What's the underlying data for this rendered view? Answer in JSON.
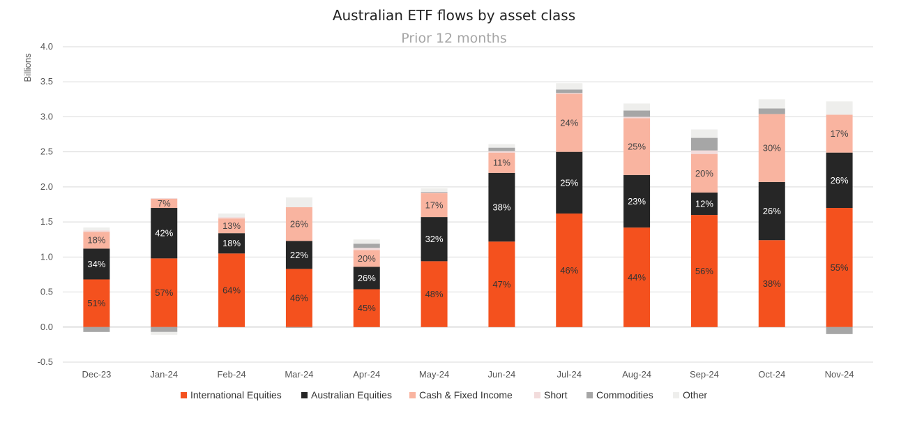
{
  "chart_data": {
    "type": "bar",
    "stacked": true,
    "title": "Australian ETF flows by asset class",
    "subtitle": "Prior 12 months",
    "ylabel": "Billions",
    "xlabel": "",
    "ylim": [
      -0.5,
      4.0
    ],
    "yticks": [
      "-0.5",
      "0.0",
      "0.5",
      "1.0",
      "1.5",
      "2.0",
      "2.5",
      "3.0",
      "3.5",
      "4.0"
    ],
    "grid": true,
    "legend_position": "bottom",
    "categories": [
      "Dec-23",
      "Jan-24",
      "Feb-24",
      "Mar-24",
      "Apr-24",
      "May-24",
      "Jun-24",
      "Jul-24",
      "Aug-24",
      "Sep-24",
      "Oct-24",
      "Nov-24"
    ],
    "series": [
      {
        "name": "International Equities",
        "color": "#f4511e",
        "label_color": "#333333",
        "values": [
          0.68,
          0.98,
          1.05,
          0.83,
          0.54,
          0.94,
          1.22,
          1.62,
          1.42,
          1.6,
          1.24,
          1.7
        ],
        "labels": [
          "51%",
          "57%",
          "64%",
          "46%",
          "45%",
          "48%",
          "47%",
          "46%",
          "44%",
          "56%",
          "38%",
          "55%"
        ]
      },
      {
        "name": "Australian Equities",
        "color": "#262626",
        "label_color": "#ffffff",
        "values": [
          0.44,
          0.72,
          0.29,
          0.4,
          0.32,
          0.63,
          0.98,
          0.88,
          0.75,
          0.32,
          0.83,
          0.79
        ],
        "labels": [
          "34%",
          "42%",
          "18%",
          "22%",
          "26%",
          "32%",
          "38%",
          "25%",
          "23%",
          "12%",
          "26%",
          "26%"
        ]
      },
      {
        "name": "Cash & Fixed Income",
        "color": "#f9b4a0",
        "label_color": "#444444",
        "values": [
          0.24,
          0.13,
          0.21,
          0.48,
          0.24,
          0.34,
          0.29,
          0.83,
          0.81,
          0.55,
          0.97,
          0.54
        ],
        "labels": [
          "18%",
          "7%",
          "13%",
          "26%",
          "20%",
          "17%",
          "11%",
          "24%",
          "25%",
          "20%",
          "30%",
          "17%"
        ]
      },
      {
        "name": "Short",
        "color": "#f2dcdc",
        "values": [
          0.02,
          0.01,
          0.02,
          0.0,
          0.03,
          0.01,
          0.02,
          0.01,
          0.02,
          0.05,
          0.0,
          0.0
        ]
      },
      {
        "name": "Commodities",
        "color": "#a6a6a6",
        "values": [
          -0.07,
          -0.07,
          0.0,
          -0.01,
          0.06,
          0.01,
          0.05,
          0.05,
          0.09,
          0.18,
          0.08,
          -0.1
        ]
      },
      {
        "name": "Other",
        "color": "#eeeeec",
        "values": [
          0.04,
          -0.04,
          0.05,
          0.14,
          0.06,
          0.05,
          0.05,
          0.09,
          0.1,
          0.12,
          0.13,
          0.19
        ]
      }
    ]
  }
}
